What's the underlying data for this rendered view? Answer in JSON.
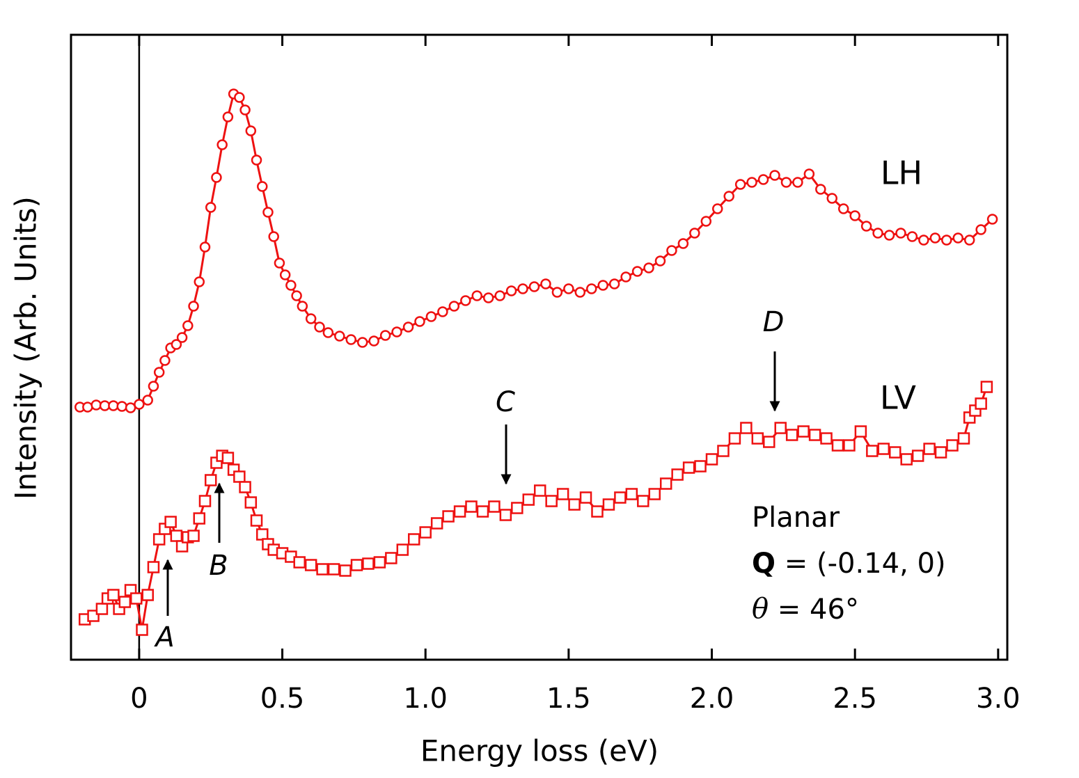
{
  "chart_data": {
    "type": "scatter",
    "xlabel": "Energy loss (eV)",
    "ylabel": "Intensity (Arb. Units)",
    "xlim": [
      -0.238,
      3.032
    ],
    "ylim": [
      0,
      8.98
    ],
    "xticks": [
      0,
      0.5,
      {
        "value": 1,
        "label": "1.0"
      },
      1.5,
      {
        "value": 2,
        "label": "2.0"
      },
      2.5,
      {
        "value": 3,
        "label": "3.0"
      }
    ],
    "annotations": [
      "A",
      "B",
      "C",
      "D"
    ],
    "inset": [
      "Planar",
      [
        "Q",
        " = (-0.14, 0)"
      ],
      [
        "θ",
        " = 46°"
      ]
    ],
    "series": [
      {
        "name": "LH",
        "color": "#ee1111",
        "marker": "circle",
        "x": [
          -0.207,
          -0.18,
          -0.15,
          -0.12,
          -0.09,
          -0.06,
          -0.03,
          0.0,
          0.03,
          0.05,
          0.07,
          0.09,
          0.11,
          0.13,
          0.15,
          0.17,
          0.19,
          0.21,
          0.23,
          0.25,
          0.27,
          0.29,
          0.31,
          0.33,
          0.35,
          0.37,
          0.39,
          0.41,
          0.43,
          0.45,
          0.47,
          0.49,
          0.51,
          0.53,
          0.55,
          0.57,
          0.6,
          0.63,
          0.66,
          0.7,
          0.74,
          0.78,
          0.82,
          0.86,
          0.9,
          0.94,
          0.98,
          1.02,
          1.06,
          1.1,
          1.14,
          1.18,
          1.22,
          1.26,
          1.3,
          1.34,
          1.38,
          1.42,
          1.46,
          1.5,
          1.54,
          1.58,
          1.62,
          1.66,
          1.7,
          1.74,
          1.78,
          1.82,
          1.86,
          1.9,
          1.94,
          1.98,
          2.02,
          2.06,
          2.1,
          2.14,
          2.18,
          2.22,
          2.26,
          2.3,
          2.34,
          2.38,
          2.42,
          2.46,
          2.5,
          2.54,
          2.58,
          2.62,
          2.66,
          2.7,
          2.74,
          2.78,
          2.82,
          2.86,
          2.9,
          2.94,
          2.98
        ],
        "values": [
          3.63,
          3.63,
          3.66,
          3.65,
          3.65,
          3.64,
          3.62,
          3.67,
          3.73,
          3.93,
          4.13,
          4.3,
          4.48,
          4.53,
          4.63,
          4.8,
          5.08,
          5.43,
          5.93,
          6.5,
          6.93,
          7.4,
          7.8,
          8.13,
          8.08,
          7.9,
          7.6,
          7.18,
          6.8,
          6.43,
          6.08,
          5.7,
          5.53,
          5.38,
          5.23,
          5.08,
          4.9,
          4.78,
          4.7,
          4.65,
          4.6,
          4.56,
          4.58,
          4.66,
          4.71,
          4.78,
          4.86,
          4.93,
          5.0,
          5.08,
          5.16,
          5.23,
          5.2,
          5.23,
          5.3,
          5.33,
          5.36,
          5.4,
          5.28,
          5.33,
          5.28,
          5.33,
          5.38,
          5.4,
          5.5,
          5.58,
          5.63,
          5.73,
          5.88,
          5.98,
          6.13,
          6.3,
          6.48,
          6.66,
          6.83,
          6.86,
          6.9,
          6.96,
          6.86,
          6.86,
          6.98,
          6.76,
          6.63,
          6.48,
          6.38,
          6.23,
          6.13,
          6.1,
          6.13,
          6.08,
          6.03,
          6.06,
          6.03,
          6.06,
          6.03,
          6.18,
          6.33
        ]
      },
      {
        "name": "LV",
        "color": "#ee1111",
        "marker": "square",
        "x": [
          -0.19,
          -0.16,
          -0.13,
          -0.11,
          -0.09,
          -0.07,
          -0.05,
          -0.03,
          -0.01,
          0.01,
          0.03,
          0.05,
          0.07,
          0.09,
          0.11,
          0.13,
          0.15,
          0.17,
          0.19,
          0.21,
          0.23,
          0.25,
          0.27,
          0.29,
          0.31,
          0.33,
          0.35,
          0.37,
          0.39,
          0.41,
          0.43,
          0.45,
          0.47,
          0.5,
          0.53,
          0.56,
          0.6,
          0.64,
          0.68,
          0.72,
          0.76,
          0.8,
          0.84,
          0.88,
          0.92,
          0.96,
          1.0,
          1.04,
          1.08,
          1.12,
          1.16,
          1.2,
          1.24,
          1.28,
          1.32,
          1.36,
          1.4,
          1.44,
          1.48,
          1.52,
          1.56,
          1.6,
          1.64,
          1.68,
          1.72,
          1.76,
          1.8,
          1.84,
          1.88,
          1.92,
          1.96,
          2.0,
          2.04,
          2.08,
          2.12,
          2.16,
          2.2,
          2.24,
          2.28,
          2.32,
          2.36,
          2.4,
          2.44,
          2.48,
          2.52,
          2.56,
          2.6,
          2.64,
          2.68,
          2.72,
          2.76,
          2.8,
          2.84,
          2.88,
          2.9,
          2.92,
          2.94,
          2.96
        ],
        "values": [
          0.58,
          0.63,
          0.73,
          0.88,
          0.93,
          0.73,
          0.83,
          1.0,
          0.88,
          0.43,
          0.93,
          1.33,
          1.73,
          1.88,
          1.98,
          1.78,
          1.63,
          1.76,
          1.78,
          2.03,
          2.28,
          2.58,
          2.83,
          2.93,
          2.9,
          2.73,
          2.63,
          2.48,
          2.26,
          2.0,
          1.8,
          1.66,
          1.58,
          1.53,
          1.48,
          1.4,
          1.36,
          1.3,
          1.3,
          1.28,
          1.36,
          1.38,
          1.4,
          1.46,
          1.58,
          1.73,
          1.83,
          1.96,
          2.06,
          2.13,
          2.2,
          2.13,
          2.2,
          2.08,
          2.18,
          2.3,
          2.43,
          2.28,
          2.38,
          2.23,
          2.33,
          2.13,
          2.23,
          2.33,
          2.38,
          2.28,
          2.38,
          2.53,
          2.66,
          2.76,
          2.78,
          2.88,
          3.0,
          3.18,
          3.33,
          3.18,
          3.13,
          3.33,
          3.23,
          3.28,
          3.23,
          3.18,
          3.08,
          3.08,
          3.28,
          3.0,
          3.03,
          2.98,
          2.88,
          2.93,
          3.03,
          2.98,
          3.08,
          3.18,
          3.48,
          3.58,
          3.68,
          3.92
        ]
      }
    ]
  }
}
